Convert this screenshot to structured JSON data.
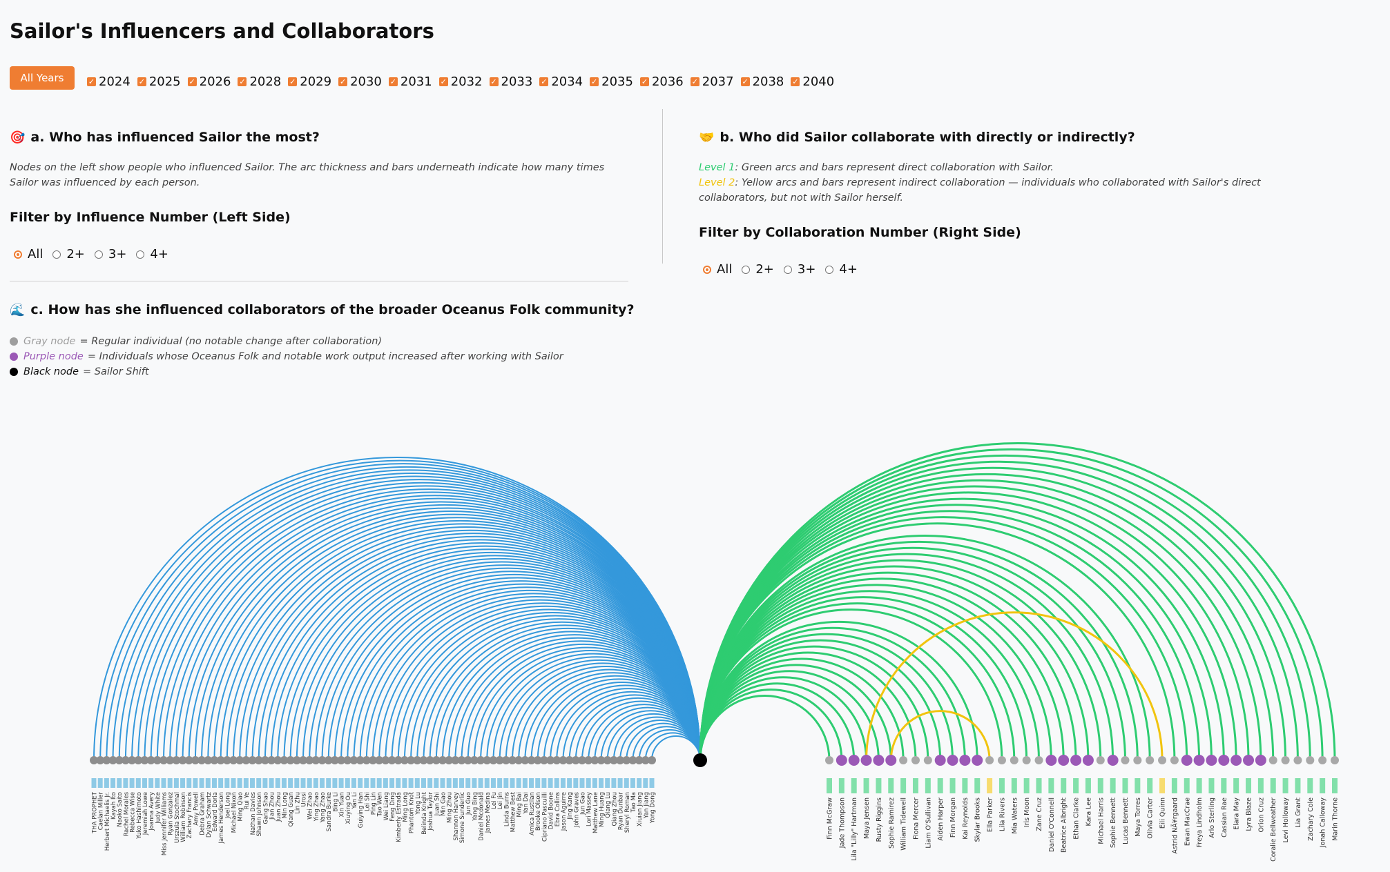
{
  "title": "Sailor's Influencers and Collaborators",
  "all_years_label": "All Years",
  "years": [
    "2024",
    "2025",
    "2026",
    "2028",
    "2029",
    "2030",
    "2031",
    "2032",
    "2033",
    "2034",
    "2035",
    "2036",
    "2037",
    "2038",
    "2040"
  ],
  "section_a": {
    "icon": "target-icon",
    "heading": "a. Who has influenced Sailor the most?",
    "desc": "Nodes on the left show people who influenced Sailor. The arc thickness and bars underneath indicate how many times Sailor was influenced by each person.",
    "filter_heading": "Filter by Influence Number (Left Side)",
    "options": [
      "All",
      "2+",
      "3+",
      "4+"
    ],
    "selected": "All"
  },
  "section_b": {
    "icon": "handshake-icon",
    "heading": "b. Who did Sailor collaborate with directly or indirectly?",
    "level1_label": "Level 1",
    "level1_text": ": Green arcs and bars represent direct collaboration with Sailor.",
    "level2_label": "Level 2",
    "level2_text": ": Yellow arcs and bars represent indirect collaboration — individuals who collaborated with Sailor's direct collaborators, but not with Sailor herself.",
    "filter_heading": "Filter by Collaboration Number (Right Side)",
    "options": [
      "All",
      "2+",
      "3+",
      "4+"
    ],
    "selected": "All"
  },
  "section_c": {
    "icon": "wave-icon",
    "heading": "c. How has she influenced collaborators of the broader Oceanus Folk community?",
    "legend": [
      {
        "label": "Gray node",
        "text": "= Regular individual (no notable change after collaboration)",
        "color": "#9e9e9e"
      },
      {
        "label": "Purple node",
        "text": "= Individuals whose Oceanus Folk and notable work output increased after working with Sailor",
        "color": "#9b59b6"
      },
      {
        "label": "Black node",
        "text": "= Sailor Shift",
        "color": "#000000"
      }
    ]
  },
  "colors": {
    "accent": "#ef7d32",
    "influence": "#3498db",
    "direct": "#2ecc71",
    "indirect": "#f1c40f",
    "regular": "#8d8d8d",
    "purple": "#9b59b6",
    "sailor": "#000000",
    "bar_blue": "#8ecae6",
    "bar_green": "#82e0aa",
    "bar_yellow": "#f7dc6f"
  },
  "influencers": [
    "THA PROPHET",
    "Caelan Miller",
    "Herbert Michaelis Jr.",
    "Kayah Ito",
    "Naoko Saito",
    "Rachel Morales",
    "Rebecca Wise",
    "Yuko Hashimoto",
    "Jeremiah Lowe",
    "Joanna Avery",
    "Judy White",
    "Miss Jennifer Williams",
    "Ryan Gonzalez",
    "Urszula Stochmal",
    "William Robinson",
    "Zachary Francis",
    "Amy Powell",
    "Debra Graham",
    "Dylan Schwartz",
    "Edward Doria",
    "James Henderson",
    "Joel Long",
    "Michael Nixon",
    "Ming Qiao",
    "Rui Ye",
    "Nathan Davies",
    "Shawn Johnson",
    "Gang Shao",
    "Jian Zhou",
    "Juan Zhou",
    "Min Long",
    "Qiang Guan",
    "Lin Zhu",
    "Urosi",
    "Wei Zhao",
    "Ying Zhao",
    "Yang Zhao",
    "Sandra Burke",
    "Bing Li",
    "Xin Yuan",
    "Xiuying Ou",
    "Yan Li",
    "Guiying Han",
    "Lei Shi",
    "Ping Lin",
    "Tao Wen",
    "Wei Liang",
    "Feng Ding",
    "Kimberly Estrada",
    "Ming Long",
    "Phantom Knot",
    "Yong Lu",
    "Belinda Knight",
    "Joshua Taylor",
    "Juan Shi",
    "Min Gao",
    "Ming Zhou",
    "Shannon Harvey",
    "Simone Sunderlic",
    "Jun Guo",
    "Yang Bing",
    "Daniel Mcdonald",
    "James Medina",
    "Lei Fu",
    "Lei Jin",
    "Linda Burns",
    "Matthew Best",
    "Ming Bai",
    "Yan Dai",
    "Amica Rustilan",
    "Brooke Olson",
    "Cipriano Pascuilli",
    "David Boone",
    "Ebra Collins",
    "Jason Aguirre",
    "Jing Kang",
    "John Graves",
    "Jun Gao",
    "Lori Massey",
    "Matthew Lane",
    "Ming Huang",
    "Qiang Lu",
    "Qiang Zhou",
    "Ryan Dunbar",
    "Sheryl Roman",
    "Tao Ma",
    "Xiuian Jiang",
    "Yan Jiang",
    "Yong Dong"
  ],
  "collaborators": [
    {
      "name": "Finn McGraw",
      "level": 1,
      "purple": false,
      "count": 2
    },
    {
      "name": "Jade Thompson",
      "level": 1,
      "purple": true,
      "count": 2
    },
    {
      "name": "Lila \"Lilly\" Hartman",
      "level": 1,
      "purple": true,
      "count": 2
    },
    {
      "name": "Maya Jensen",
      "level": 1,
      "purple": true,
      "count": 2
    },
    {
      "name": "Rusty Riggins",
      "level": 1,
      "purple": true,
      "count": 2
    },
    {
      "name": "Sophie Ramirez",
      "level": 1,
      "purple": true,
      "count": 2
    },
    {
      "name": "William Tidewell",
      "level": 1,
      "purple": false,
      "count": 2
    },
    {
      "name": "Fiona Mercer",
      "level": 1,
      "purple": false,
      "count": 2
    },
    {
      "name": "Liam O'Sullivan",
      "level": 1,
      "purple": false,
      "count": 2
    },
    {
      "name": "Aiden Harper",
      "level": 1,
      "purple": true,
      "count": 2
    },
    {
      "name": "Finn Morgan",
      "level": 1,
      "purple": true,
      "count": 2
    },
    {
      "name": "Kai Reynolds",
      "level": 1,
      "purple": true,
      "count": 2
    },
    {
      "name": "Skylar Brooks",
      "level": 1,
      "purple": true,
      "count": 2
    },
    {
      "name": "Ella Parker",
      "level": 2,
      "purple": false,
      "count": 2
    },
    {
      "name": "Lila Rivers",
      "level": 1,
      "purple": false,
      "count": 2
    },
    {
      "name": "Mia Waters",
      "level": 1,
      "purple": false,
      "count": 2
    },
    {
      "name": "Iris Moon",
      "level": 1,
      "purple": false,
      "count": 2
    },
    {
      "name": "Zane Cruz",
      "level": 1,
      "purple": false,
      "count": 2
    },
    {
      "name": "Daniel O'Connell",
      "level": 1,
      "purple": true,
      "count": 2
    },
    {
      "name": "Beatrice Albright",
      "level": 1,
      "purple": true,
      "count": 2
    },
    {
      "name": "Ethan Clarke",
      "level": 1,
      "purple": true,
      "count": 2
    },
    {
      "name": "Kara Lee",
      "level": 1,
      "purple": true,
      "count": 2
    },
    {
      "name": "Michael Harris",
      "level": 1,
      "purple": false,
      "count": 2
    },
    {
      "name": "Sophie Bennett",
      "level": 1,
      "purple": true,
      "count": 2
    },
    {
      "name": "Lucas Bennett",
      "level": 1,
      "purple": false,
      "count": 2
    },
    {
      "name": "Maya Torres",
      "level": 1,
      "purple": false,
      "count": 2
    },
    {
      "name": "Olivia Carter",
      "level": 1,
      "purple": false,
      "count": 2
    },
    {
      "name": "Eili Quinn",
      "level": 2,
      "purple": false,
      "count": 2
    },
    {
      "name": "Astrid NÃ¥rgaard",
      "level": 1,
      "purple": false,
      "count": 2
    },
    {
      "name": "Ewan MacCrae",
      "level": 1,
      "purple": true,
      "count": 2
    },
    {
      "name": "Freya Lindholm",
      "level": 1,
      "purple": true,
      "count": 2
    },
    {
      "name": "Arlo Sterling",
      "level": 1,
      "purple": true,
      "count": 2
    },
    {
      "name": "Cassian Rae",
      "level": 1,
      "purple": true,
      "count": 2
    },
    {
      "name": "Elara May",
      "level": 1,
      "purple": true,
      "count": 2
    },
    {
      "name": "Lyra Blaze",
      "level": 1,
      "purple": true,
      "count": 2
    },
    {
      "name": "Orion Cruz",
      "level": 1,
      "purple": true,
      "count": 2
    },
    {
      "name": "Coralie Bellweather",
      "level": 1,
      "purple": false,
      "count": 2
    },
    {
      "name": "Levi Holloway",
      "level": 1,
      "purple": false,
      "count": 2
    },
    {
      "name": "Lia Grant",
      "level": 1,
      "purple": false,
      "count": 2
    },
    {
      "name": "Zachary Cole",
      "level": 1,
      "purple": false,
      "count": 2
    },
    {
      "name": "Jonah Calloway",
      "level": 1,
      "purple": false,
      "count": 2
    },
    {
      "name": "Marin Thorne",
      "level": 1,
      "purple": false,
      "count": 2
    }
  ],
  "indirect_links": [
    {
      "from": "Maya Jensen",
      "to": "Eili Quinn"
    },
    {
      "from": "Sophie Ramirez",
      "to": "Ella Parker"
    }
  ]
}
